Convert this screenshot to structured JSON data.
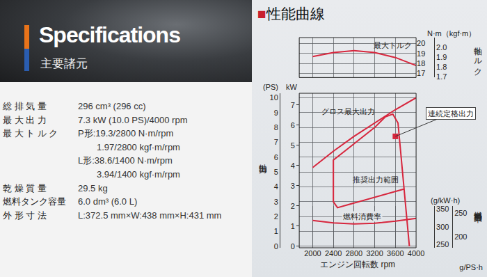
{
  "header": {
    "title": "Specifications",
    "subtitle": "主要諸元"
  },
  "specifications": [
    {
      "label": "総 排 気 量",
      "values": [
        "296 cm³ (296 cc)"
      ]
    },
    {
      "label": "最 大 出 力",
      "values": [
        "7.3 kW (10.0 PS)/4000 rpm"
      ]
    },
    {
      "label": "最 大 ト ル ク",
      "values": [
        "P形:19.3/2800 N·m/rpm",
        "1.97/2800 kgf·m/rpm",
        "L形:38.6/1400 N·m/rpm",
        "3.94/1400 kgf·m/rpm"
      ]
    },
    {
      "label": "乾 燥 質 量",
      "values": [
        "29.5 kg"
      ]
    },
    {
      "label": "燃料タンク容量",
      "values": [
        "6.0 dm³ (6.0 L)"
      ]
    },
    {
      "label": "外 形 寸 法",
      "values": [
        "L:372.5 mm×W:438 mm×H:431 mm"
      ]
    }
  ],
  "chart_title": "■性能曲線",
  "chart_data": [
    {
      "type": "line",
      "ylabel": "軸トルク",
      "yunits": "N·m（kgf·m）",
      "ylim": [
        16.6,
        20.6
      ],
      "yticks": [
        17,
        18,
        19,
        20
      ],
      "y2lim": [
        1.693,
        2.101
      ],
      "y2ticks": [
        1.7,
        1.8,
        1.9,
        {
          "value": 2.0,
          "label": "2.0"
        }
      ],
      "grid": true,
      "series": [
        {
          "name": "最大トルク",
          "color": "#d7263d",
          "x": [
            2000,
            2400,
            2800,
            3200,
            3600,
            4000
          ],
          "values": [
            18.7,
            19.1,
            19.3,
            19.1,
            18.6,
            17.8
          ]
        }
      ]
    },
    {
      "type": "line",
      "ylabel": "軸出力",
      "yunit": "(PS)",
      "y2unit": "kW",
      "xlabel": "エンジン回転数 rpm",
      "xlim": [
        1740,
        4000
      ],
      "xticks": [
        2000,
        2400,
        2800,
        3200,
        3600,
        4000
      ],
      "ylim": [
        -0.1,
        10.3
      ],
      "yticks": [
        0,
        1,
        2,
        3,
        4,
        5,
        6,
        7,
        8,
        9,
        10
      ],
      "y2lim": [
        -0.07,
        7.58
      ],
      "y2ticks": [
        0,
        1,
        2,
        3,
        4,
        5,
        6,
        7
      ],
      "grid": true,
      "series": [
        {
          "name": "グロス最大出力",
          "color": "#d7263d",
          "x": [
            2000,
            2400,
            2800,
            3200,
            3600,
            4000
          ],
          "values": [
            5.3,
            6.4,
            7.4,
            8.3,
            9.2,
            10.0
          ]
        },
        {
          "name": "推奨出力範囲",
          "color": "#d7263d",
          "x": [
            3870,
            3650,
            3550,
            3400,
            3200,
            2800,
            2400,
            2400,
            2480,
            3760
          ],
          "values": [
            0,
            8.3,
            8.9,
            8.7,
            8.0,
            6.9,
            5.8,
            3.0,
            2.6,
            3.85
          ]
        },
        {
          "name": "連続定格出力",
          "type": "scatter",
          "marker": "square",
          "color": "#d7263d",
          "x": [
            3600
          ],
          "values": [
            7.4
          ]
        }
      ]
    },
    {
      "type": "line",
      "ylabel": "燃料消費率",
      "yunit": "(g/kW·h)",
      "y2unit": "g/PS·h",
      "ylim": [
        240,
        360
      ],
      "yticks": [
        250,
        300,
        350
      ],
      "y2lim": [
        176.5,
        264.8
      ],
      "y2ticks": [
        200,
        250
      ],
      "grid": false,
      "series": [
        {
          "name": "燃料消費率",
          "color": "#d7263d",
          "x": [
            2000,
            2400,
            2800,
            3200,
            3600,
            4000
          ],
          "values": [
            318,
            311,
            308,
            310,
            316,
            324
          ]
        }
      ]
    }
  ]
}
